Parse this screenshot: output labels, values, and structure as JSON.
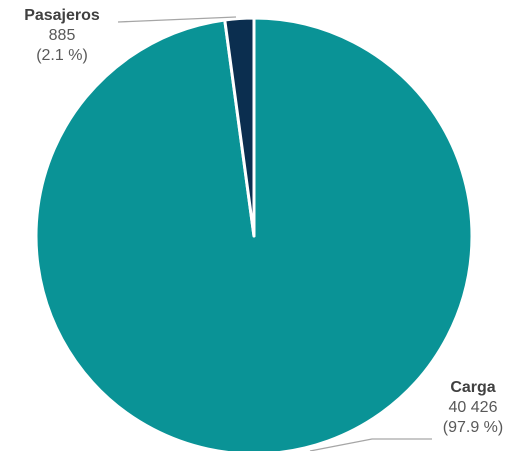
{
  "chart_data": {
    "type": "pie",
    "slices": [
      {
        "label": "Carga",
        "value": 40426,
        "value_text": "40 426",
        "percent_text": "(97.9 %)",
        "color": "#0a9396"
      },
      {
        "label": "Pasajeros",
        "value": 885,
        "value_text": "885",
        "percent_text": "(2.1 %)",
        "color": "#0b2e4f"
      }
    ],
    "legend": "none",
    "label_style": "outside with leader lines"
  }
}
